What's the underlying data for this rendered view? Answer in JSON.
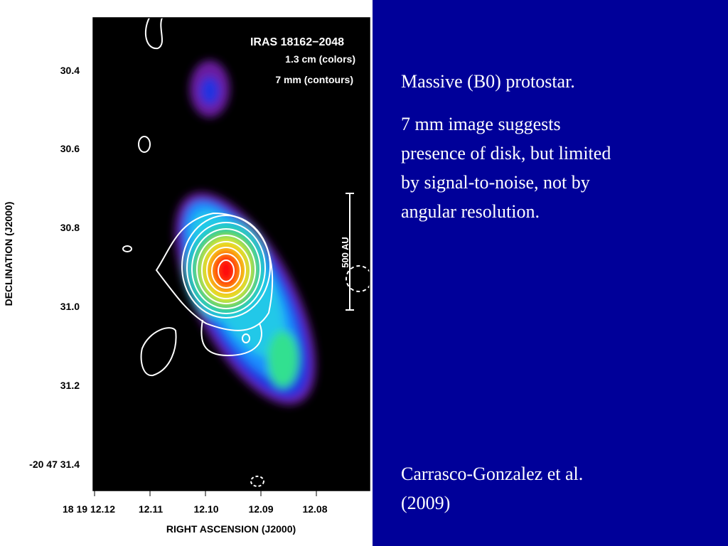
{
  "figure": {
    "title": "IRAS 18162−2048",
    "legend": [
      "1.3 cm (colors)",
      "7 mm (contours)"
    ],
    "scale_label": "500 AU",
    "y_axis_label": "DECLINATION (J2000)",
    "x_axis_label": "RIGHT ASCENSION (J2000)",
    "y_ticks": [
      "30.4",
      "30.6",
      "30.8",
      "31.0",
      "31.2",
      "-20 47 31.4"
    ],
    "x_ticks": [
      "18 19 12.12",
      "12.11",
      "12.10",
      "12.09",
      "12.08"
    ]
  },
  "text": {
    "heading": "Massive (B0) protostar.",
    "body": [
      "7 mm image suggests",
      "presence of disk, but limited",
      "by signal-to-noise, not by",
      "angular resolution."
    ],
    "citation": [
      "Carrasco-Gonzalez et al.",
      "(2009)"
    ]
  }
}
